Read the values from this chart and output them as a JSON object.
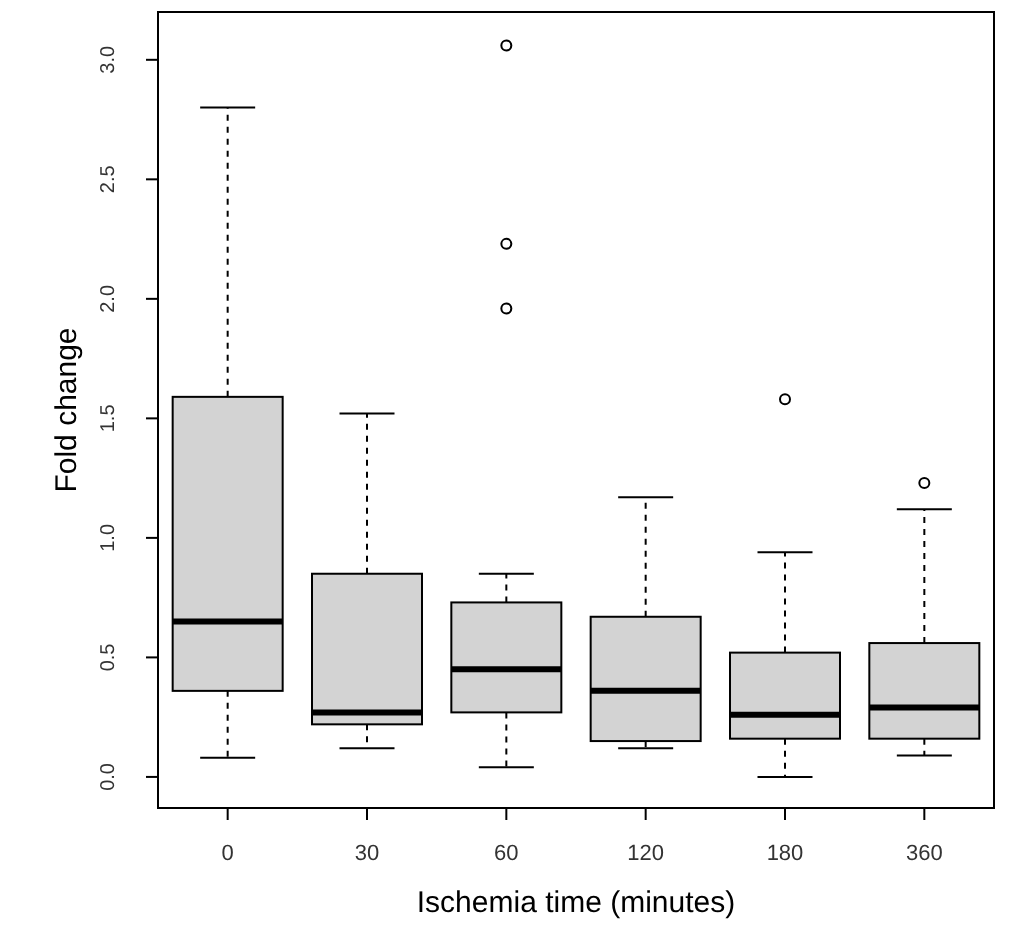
{
  "chart_data": {
    "type": "box",
    "xlabel": "Ischemia time (minutes)",
    "ylabel": "Fold change",
    "categories": [
      "0",
      "30",
      "60",
      "120",
      "180",
      "360"
    ],
    "color": "#d3d3d3",
    "ylim": [
      -0.13,
      3.2
    ],
    "yticks": [
      {
        "value": 0,
        "label": "0.0"
      },
      {
        "value": 0.5,
        "label": "0.5"
      },
      {
        "value": 1,
        "label": "1.0"
      },
      {
        "value": 1.5,
        "label": "1.5"
      },
      {
        "value": 2,
        "label": "2.0"
      },
      {
        "value": 2.5,
        "label": "2.5"
      },
      {
        "value": 3,
        "label": "3.0"
      }
    ],
    "grid": false,
    "boxes": [
      {
        "low": 0.08,
        "q1": 0.36,
        "median": 0.65,
        "q3": 1.59,
        "high": 2.8
      },
      {
        "low": 0.12,
        "q1": 0.22,
        "median": 0.27,
        "q3": 0.85,
        "high": 1.52
      },
      {
        "low": 0.04,
        "q1": 0.27,
        "median": 0.45,
        "q3": 0.73,
        "high": 0.85,
        "outliers": [
          1.96,
          2.23,
          3.06
        ]
      },
      {
        "low": 0.12,
        "q1": 0.15,
        "median": 0.36,
        "q3": 0.67,
        "high": 1.17
      },
      {
        "low": 0.0,
        "q1": 0.16,
        "median": 0.26,
        "q3": 0.52,
        "high": 0.94,
        "outliers": [
          1.58
        ]
      },
      {
        "low": 0.09,
        "q1": 0.16,
        "median": 0.29,
        "q3": 0.56,
        "high": 1.12,
        "outliers": [
          1.23
        ]
      }
    ]
  }
}
